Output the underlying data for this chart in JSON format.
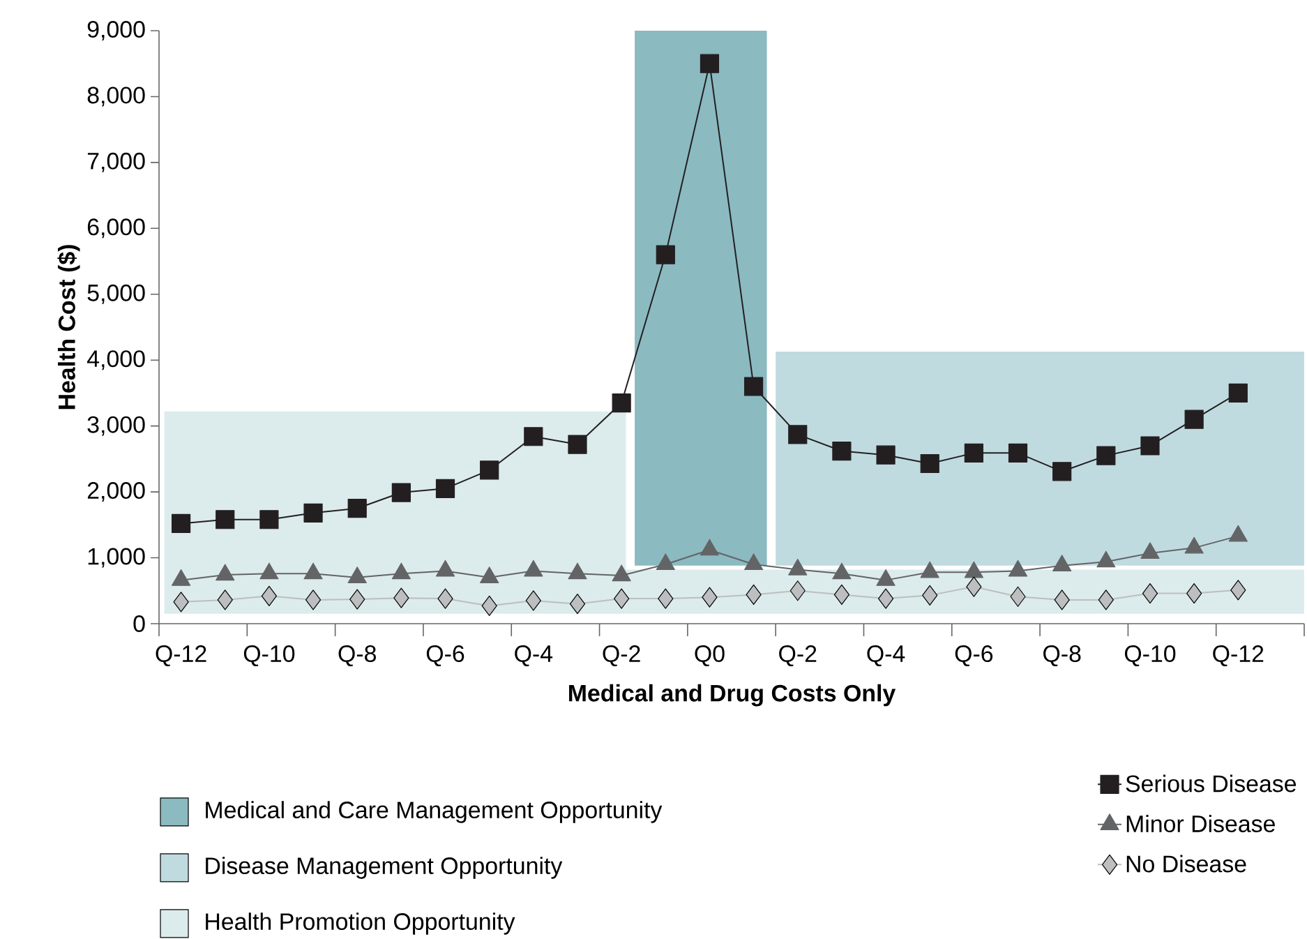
{
  "chart_data": {
    "type": "line",
    "xlabel": "Medical and Drug Costs Only",
    "ylabel": "Health Cost ($)",
    "categories": [
      "Q-12",
      null,
      "Q-10",
      null,
      "Q-8",
      null,
      "Q-6",
      null,
      "Q-4",
      null,
      "Q-2",
      null,
      "Q0",
      null,
      "Q-2",
      null,
      "Q-4",
      null,
      "Q-6",
      null,
      "Q-8",
      null,
      "Q-10",
      null,
      "Q-12"
    ],
    "ylim": [
      0,
      9000
    ],
    "yticks": [
      0,
      {
        "value": 1000,
        "label": "1,000"
      },
      {
        "value": 2000,
        "label": "2,000"
      },
      {
        "value": 3000,
        "label": "3,000"
      },
      {
        "value": 4000,
        "label": "4,000"
      },
      {
        "value": 5000,
        "label": "5,000"
      },
      {
        "value": 6000,
        "label": "6,000"
      },
      {
        "value": 7000,
        "label": "7,000"
      },
      {
        "value": 8000,
        "label": "8,000"
      },
      {
        "value": 9000,
        "label": "9,000"
      }
    ],
    "series": [
      {
        "name": "Serious Disease",
        "color": "#231f20",
        "marker": "square",
        "values": [
          1520,
          1580,
          1580,
          1680,
          1750,
          1990,
          2050,
          2330,
          2840,
          2720,
          3350,
          5600,
          8500,
          3600,
          2870,
          2620,
          2560,
          2430,
          2590,
          2590,
          2310,
          2550,
          2700,
          3100,
          3500
        ]
      },
      {
        "name": "Minor Disease",
        "color": "#636466",
        "marker": "triangle",
        "values": [
          660,
          740,
          760,
          760,
          700,
          760,
          800,
          700,
          800,
          760,
          730,
          900,
          1120,
          900,
          820,
          760,
          660,
          780,
          780,
          800,
          880,
          940,
          1070,
          1150,
          1330
        ]
      },
      {
        "name": "No Disease",
        "color": "#bcbec0",
        "marker": "diamond",
        "values": [
          330,
          360,
          420,
          360,
          370,
          390,
          380,
          270,
          350,
          300,
          380,
          380,
          400,
          440,
          500,
          440,
          380,
          430,
          560,
          410,
          360,
          360,
          460,
          460,
          510
        ]
      }
    ],
    "annotations": [
      "Medical and Care Management Opportunity",
      "Disease Management Opportunity",
      "Health Promotion Opportunity"
    ],
    "line_style": "solid",
    "grid": false,
    "legend": "bottom"
  }
}
